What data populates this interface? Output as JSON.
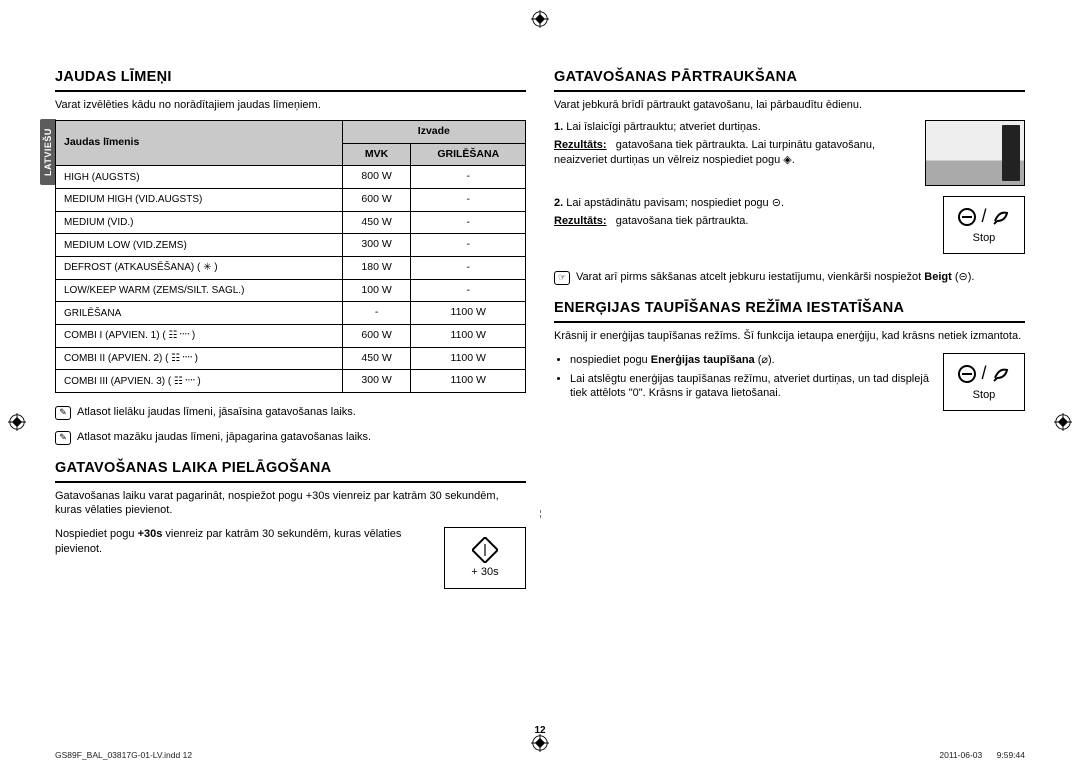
{
  "sideTab": "LATVIEŠU",
  "left": {
    "h1": "JAUDAS LĪMEŅI",
    "intro": "Varat izvēlēties kādu no norādītajiem jaudas līmeņiem.",
    "table": {
      "colLevel": "Jaudas līmenis",
      "colOutput": "Izvade",
      "colMvk": "MVK",
      "colGrill": "GRILĒŠANA",
      "rows": [
        {
          "name": "HIGH (AUGSTS)",
          "mvk": "800 W",
          "grill": "-"
        },
        {
          "name": "MEDIUM HIGH (VID.AUGSTS)",
          "mvk": "600 W",
          "grill": "-"
        },
        {
          "name": "MEDIUM (VID.)",
          "mvk": "450 W",
          "grill": "-"
        },
        {
          "name": "MEDIUM LOW (VID.ZEMS)",
          "mvk": "300 W",
          "grill": "-"
        },
        {
          "name": "DEFROST (ATKAUSĒŠANA) ( ✳ )",
          "mvk": "180 W",
          "grill": "-"
        },
        {
          "name": "LOW/KEEP WARM (ZEMS/SILT. SAGL.)",
          "mvk": "100 W",
          "grill": "-"
        },
        {
          "name": "GRILĒŠANA",
          "mvk": "-",
          "grill": "1100 W"
        },
        {
          "name": "COMBI I (APVIEN. 1) ( ☷᠁ )",
          "mvk": "600 W",
          "grill": "1100 W"
        },
        {
          "name": "COMBI II (APVIEN. 2) ( ☷᠁ )",
          "mvk": "450 W",
          "grill": "1100 W"
        },
        {
          "name": "COMBI III (APVIEN. 3) ( ☷᠁ )",
          "mvk": "300 W",
          "grill": "1100 W"
        }
      ]
    },
    "note1": "Atlasot lielāku jaudas līmeni, jāsaīsina gatavošanas laiks.",
    "note2": "Atlasot mazāku jaudas līmeni, jāpagarina gatavošanas laiks.",
    "h2": "GATAVOŠANAS LAIKA PIELĀGOŠANA",
    "para2": "Gatavošanas laiku varat pagarināt, nospiežot pogu +30s vienreiz par katrām 30 sekundēm, kuras vēlaties pievienot.",
    "instr_a": "Nospiediet pogu ",
    "instr_b": "+30s",
    "instr_c": " vienreiz par katrām 30 sekundēm, kuras vēlaties pievienot.",
    "btn30s": "+ 30s"
  },
  "right": {
    "h1": "GATAVOŠANAS PĀRTRAUKŠANA",
    "intro": "Varat jebkurā brīdī pārtraukt gatavošanu, lai pārbaudītu ēdienu.",
    "step1_a": "Lai īslaicīgi pārtrauktu; atveriet durtiņas.",
    "res1_lbl": "Rezultāts:",
    "res1": "gatavošana tiek pārtraukta. Lai turpinātu gatavošanu, neaizveriet durtiņas un vēlreiz nospiediet pogu ◈.",
    "step2_a": "Lai apstādinātu pavisam; nospiediet pogu ⊝.",
    "res2_lbl": "Rezultāts:",
    "res2": "gatavošana tiek pārtraukta.",
    "stopLbl": "Stop",
    "tip_a": "Varat arī pirms sākšanas atcelt jebkuru iestatījumu, vienkārši nospiežot ",
    "tip_b": "Beigt",
    "tip_c": " (⊝).",
    "h2": "ENERĢIJAS TAUPĪŠANAS REŽĪMA IESTATĪŠANA",
    "para2": "Krāsnij ir enerģijas taupīšanas režīms. Šī funkcija ietaupa enerģiju, kad krāsns netiek izmantota.",
    "bul1_a": "nospiediet pogu ",
    "bul1_b": "Enerģijas taupīšana",
    "bul1_c": " (⌀).",
    "bul2": "Lai atslēgtu enerģijas taupīšanas režīmu, atveriet durtiņas, un tad displejā tiek attēlots \"0\". Krāsns ir gatava lietošanai."
  },
  "pageNum": "12",
  "footer": {
    "left": "GS89F_BAL_03817G-01-LV.indd   12",
    "date": "2011-06-03",
    "time": "9:59:44"
  }
}
